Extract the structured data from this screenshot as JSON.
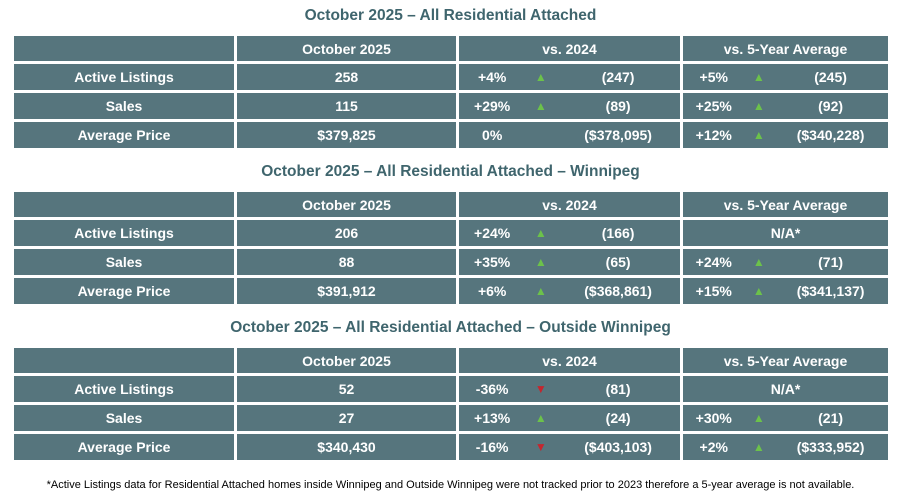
{
  "colors": {
    "table_bg": "#56757d",
    "title_color": "#3f656d",
    "cell_text": "#ffffff",
    "up": "#6cc24a",
    "down": "#c4262e",
    "footnote": "#000000",
    "page_bg": "#ffffff"
  },
  "icons": {
    "up": "▲",
    "down": "▼"
  },
  "footnote": {
    "text": "*Active Listings data for Residential Attached homes inside Winnipeg and Outside Winnipeg were not tracked prior to 2023 therefore a 5-year average is not available."
  },
  "tables": [
    {
      "title": "October 2025 – All Residential Attached",
      "columns": [
        "",
        "October 2025",
        "vs. 2024",
        "vs. 5-Year Average"
      ],
      "rows": [
        {
          "label": "Active Listings",
          "current": "258",
          "vs2024": {
            "pct": "+4%",
            "arrow": "▲",
            "ref": "(247)"
          },
          "vs5yr": {
            "pct": "+5%",
            "arrow": "▲",
            "ref": "(245)"
          }
        },
        {
          "label": "Sales",
          "current": "115",
          "vs2024": {
            "pct": "+29%",
            "arrow": "▲",
            "ref": "(89)"
          },
          "vs5yr": {
            "pct": "+25%",
            "arrow": "▲",
            "ref": "(92)"
          }
        },
        {
          "label": "Average Price",
          "current": "$379,825",
          "vs2024": {
            "pct": "0%",
            "arrow": "",
            "ref": "($378,095)"
          },
          "vs5yr": {
            "pct": "+12%",
            "arrow": "▲",
            "ref": "($340,228)"
          }
        }
      ]
    },
    {
      "title": "October 2025 – All Residential Attached – Winnipeg",
      "columns": [
        "",
        "October 2025",
        "vs. 2024",
        "vs. 5-Year Average"
      ],
      "rows": [
        {
          "label": "Active Listings",
          "current": "206",
          "vs2024": {
            "pct": "+24%",
            "arrow": "▲",
            "ref": "(166)"
          },
          "vs5yr": {
            "na": "N/A*"
          }
        },
        {
          "label": "Sales",
          "current": "88",
          "vs2024": {
            "pct": "+35%",
            "arrow": "▲",
            "ref": "(65)"
          },
          "vs5yr": {
            "pct": "+24%",
            "arrow": "▲",
            "ref": "(71)"
          }
        },
        {
          "label": "Average Price",
          "current": "$391,912",
          "vs2024": {
            "pct": "+6%",
            "arrow": "▲",
            "ref": "($368,861)"
          },
          "vs5yr": {
            "pct": "+15%",
            "arrow": "▲",
            "ref": "($341,137)"
          }
        }
      ]
    },
    {
      "title": "October 2025 – All Residential Attached – Outside Winnipeg",
      "columns": [
        "",
        "October 2025",
        "vs. 2024",
        "vs. 5-Year Average"
      ],
      "rows": [
        {
          "label": "Active Listings",
          "current": "52",
          "vs2024": {
            "pct": "-36%",
            "arrow": "▼",
            "ref": "(81)"
          },
          "vs5yr": {
            "na": "N/A*"
          }
        },
        {
          "label": "Sales",
          "current": "27",
          "vs2024": {
            "pct": "+13%",
            "arrow": "▲",
            "ref": "(24)"
          },
          "vs5yr": {
            "pct": "+30%",
            "arrow": "▲",
            "ref": "(21)"
          }
        },
        {
          "label": "Average Price",
          "current": "$340,430",
          "vs2024": {
            "pct": "-16%",
            "arrow": "▼",
            "ref": "($403,103)"
          },
          "vs5yr": {
            "pct": "+2%",
            "arrow": "▲",
            "ref": "($333,952)"
          }
        }
      ]
    }
  ]
}
